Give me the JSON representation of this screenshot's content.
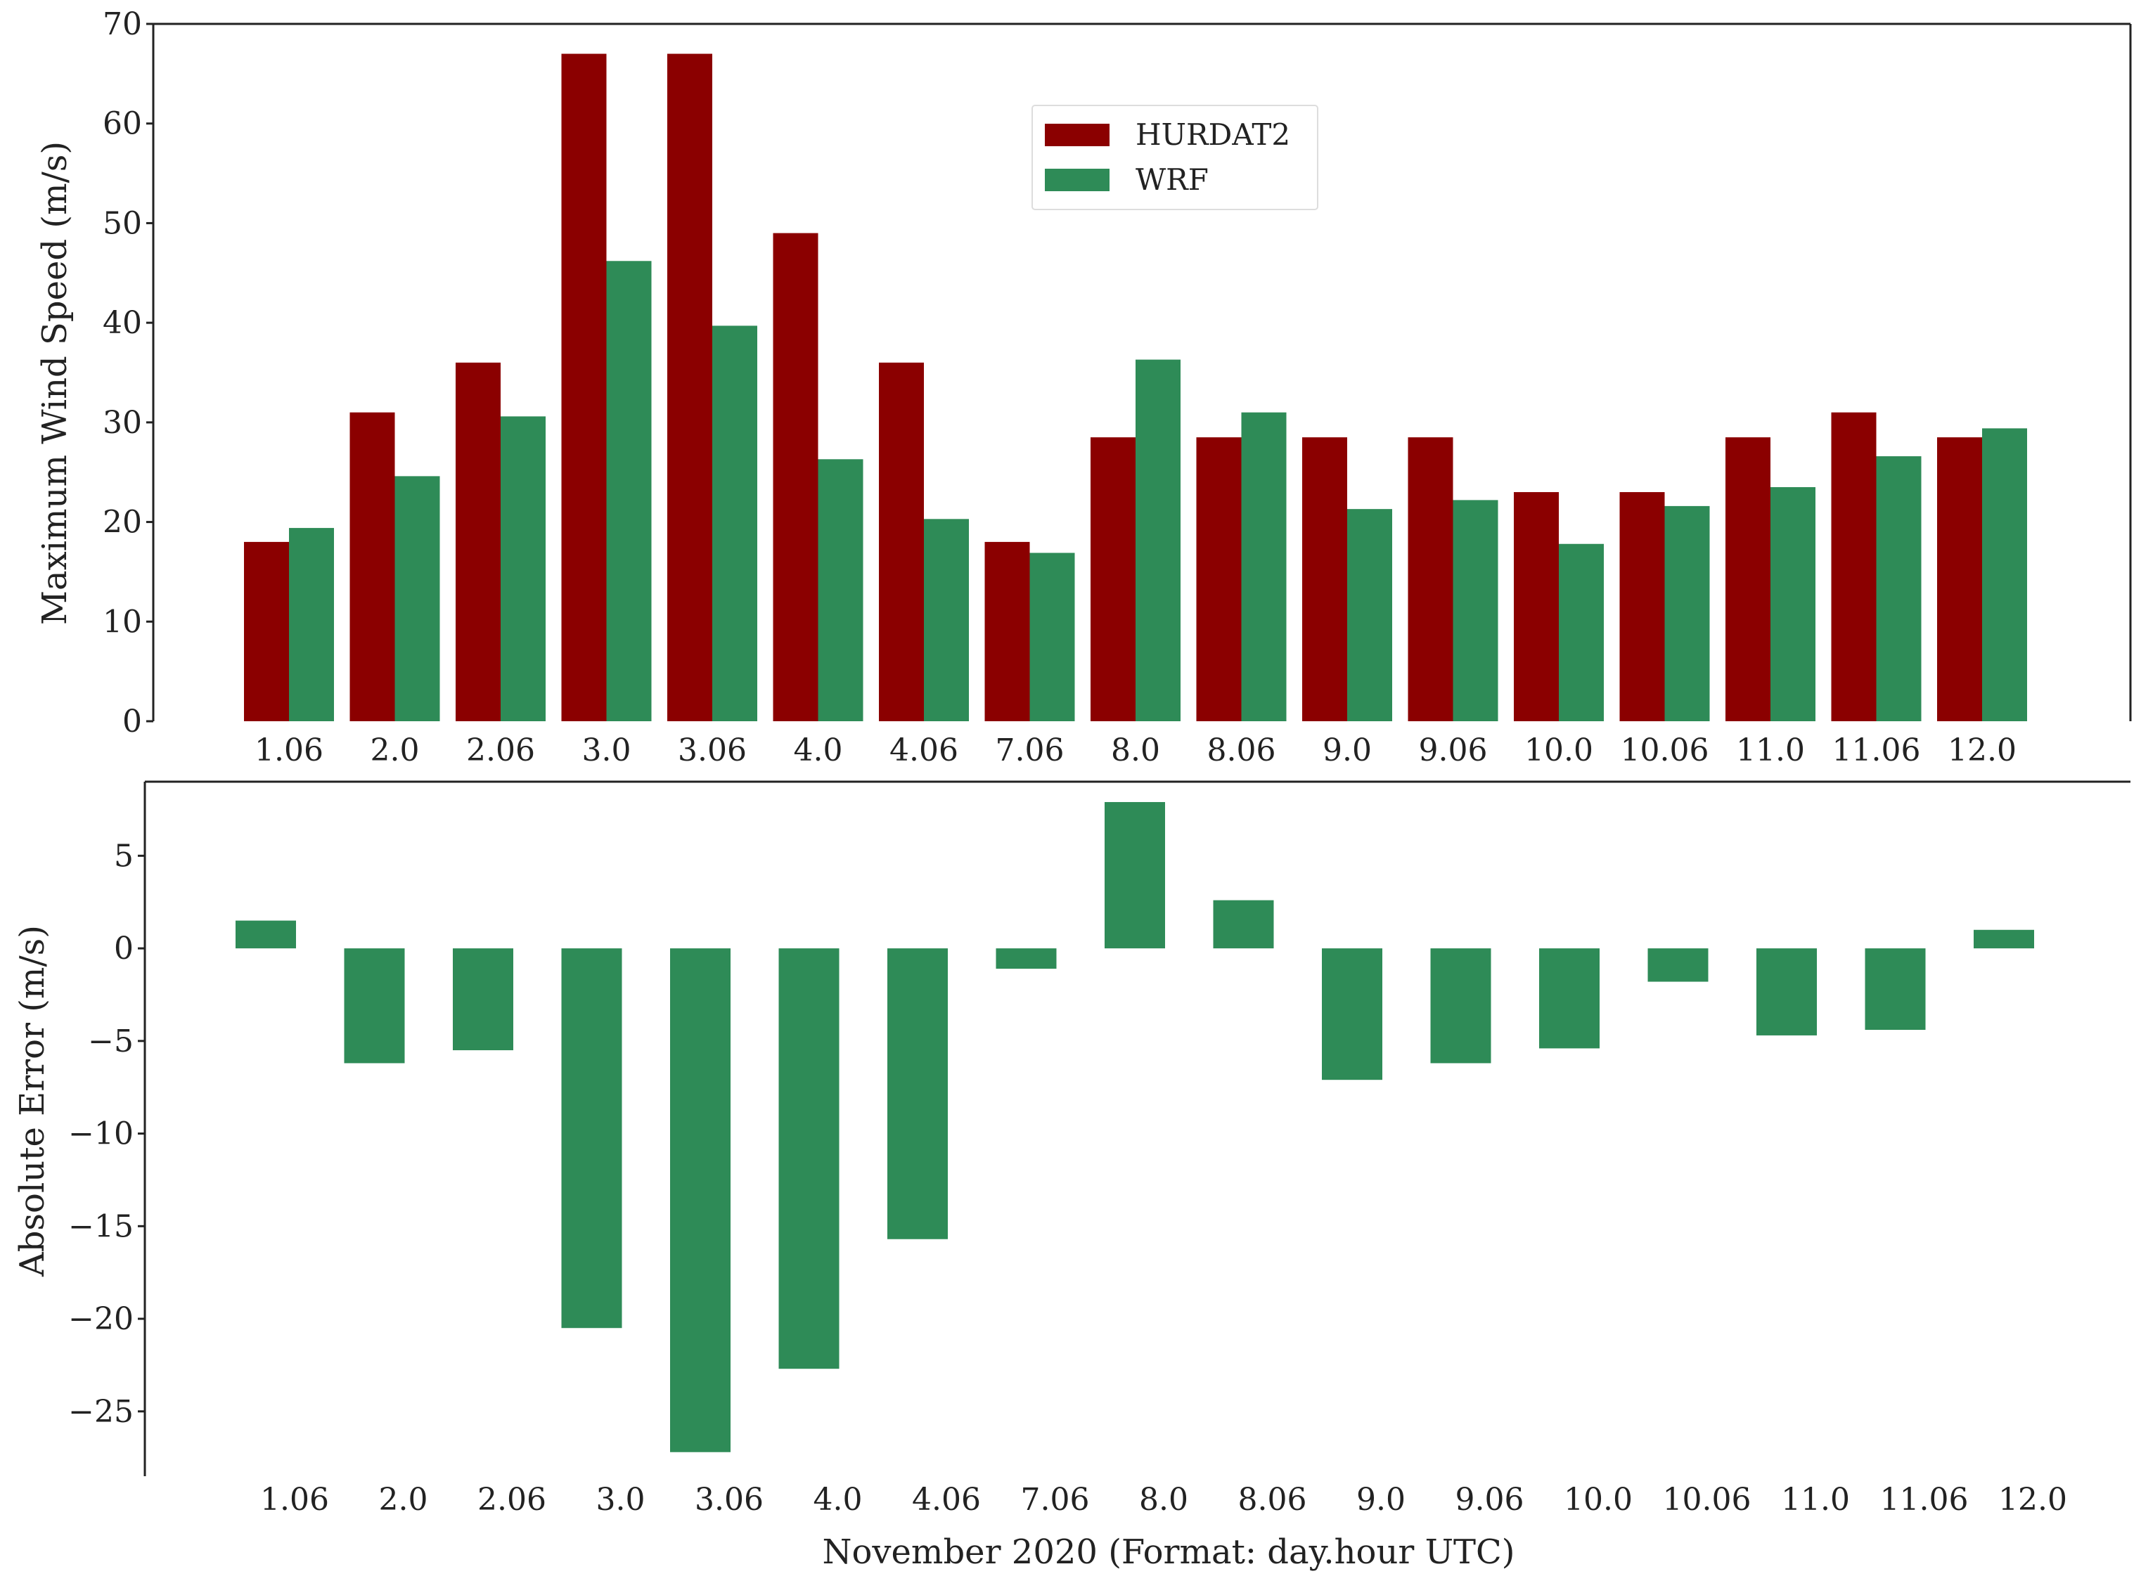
{
  "chart_data": [
    {
      "type": "bar",
      "title": "",
      "xlabel": "",
      "ylabel": "Maximum Wind Speed (m/s)",
      "ylim": [
        0,
        70
      ],
      "yticks": [
        0,
        10,
        20,
        30,
        40,
        50,
        60,
        70
      ],
      "ytick_labels": [
        "0",
        "10",
        "20",
        "30",
        "40",
        "50",
        "60",
        "70"
      ],
      "categories": [
        "1.06",
        "2.0",
        "2.06",
        "3.0",
        "3.06",
        "4.0",
        "4.06",
        "7.06",
        "8.0",
        "8.06",
        "9.0",
        "9.06",
        "10.0",
        "10.06",
        "11.0",
        "11.06",
        "12.0"
      ],
      "series": [
        {
          "name": "HURDAT2",
          "color": "#8b0000",
          "values": [
            18,
            31,
            36,
            67,
            67,
            49,
            36,
            18,
            28.5,
            28.5,
            28.5,
            28.5,
            23,
            23,
            28.5,
            31,
            28.5
          ]
        },
        {
          "name": "WRF",
          "color": "#2e8b57",
          "values": [
            19.4,
            24.6,
            30.6,
            46.2,
            39.7,
            26.3,
            20.3,
            16.9,
            36.3,
            31,
            21.3,
            22.2,
            17.8,
            21.6,
            23.5,
            26.6,
            29.4
          ]
        }
      ],
      "legend": {
        "position": "upper-center",
        "entries": [
          "HURDAT2",
          "WRF"
        ]
      }
    },
    {
      "type": "bar",
      "title": "",
      "xlabel": "November 2020 (Format: day.hour UTC)",
      "ylabel": "Absolute Error (m/s)",
      "ylim": [
        -28.5,
        9
      ],
      "yticks": [
        5,
        0,
        -5,
        -10,
        -15,
        -20,
        -25
      ],
      "ytick_labels": [
        "5",
        "0",
        "−5",
        "−10",
        "−15",
        "−20",
        "−25"
      ],
      "categories": [
        "1.06",
        "2.0",
        "2.06",
        "3.0",
        "3.06",
        "4.0",
        "4.06",
        "7.06",
        "8.0",
        "8.06",
        "9.0",
        "9.06",
        "10.0",
        "10.06",
        "11.0",
        "11.06",
        "12.0"
      ],
      "series": [
        {
          "name": "Absolute Error",
          "color": "#2e8b57",
          "values": [
            1.5,
            -6.2,
            -5.5,
            -20.5,
            -27.2,
            -22.7,
            -15.7,
            -1.1,
            7.9,
            2.6,
            -7.1,
            -6.2,
            -5.4,
            -1.8,
            -4.7,
            -4.4,
            1.0
          ]
        }
      ]
    }
  ]
}
